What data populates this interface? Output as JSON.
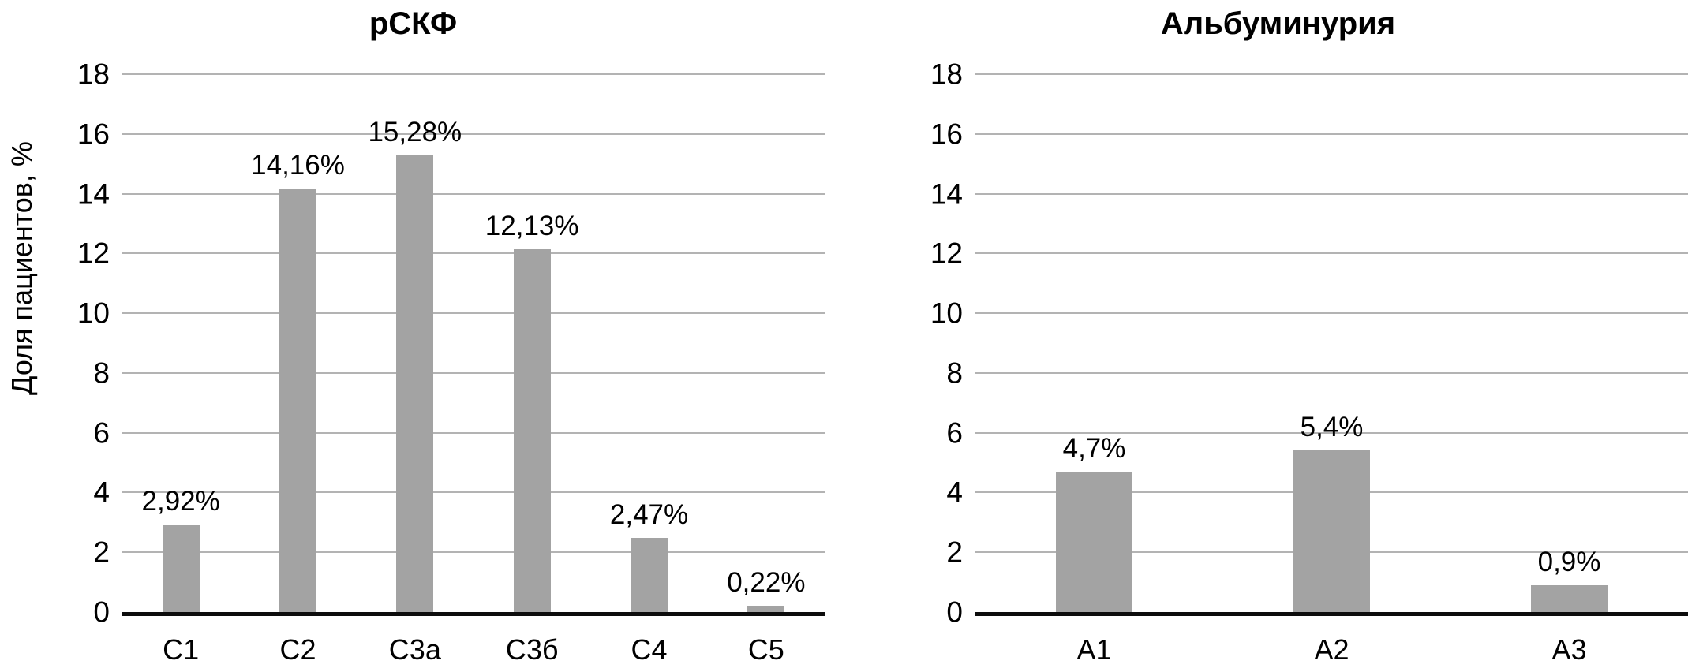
{
  "figure": {
    "background": "#ffffff",
    "bar_color": "#a3a3a3",
    "gridline_color": "#b3b3b3",
    "axis_color": "#0d0d0d",
    "text_color": "#000000"
  },
  "chart_data": [
    {
      "type": "bar",
      "title": "рСКФ",
      "ylabel": "Доля пациентов, %",
      "xlabel": "",
      "categories": [
        "С1",
        "С2",
        "С3а",
        "С3б",
        "С4",
        "С5"
      ],
      "values": [
        2.92,
        14.16,
        15.28,
        12.13,
        2.47,
        0.22
      ],
      "value_labels": [
        "2,92%",
        "14,16%",
        "15,28%",
        "12,13%",
        "2,47%",
        "0,22%"
      ],
      "ylim": [
        0,
        18
      ],
      "ytick_step": 2,
      "yticks": [
        0,
        2,
        4,
        6,
        8,
        10,
        12,
        14,
        16,
        18
      ],
      "grid": true,
      "legend": false
    },
    {
      "type": "bar",
      "title": "Альбуминурия",
      "ylabel": "",
      "xlabel": "",
      "categories": [
        "А1",
        "А2",
        "А3"
      ],
      "values": [
        4.7,
        5.4,
        0.9
      ],
      "value_labels": [
        "4,7%",
        "5,4%",
        "0,9%"
      ],
      "ylim": [
        0,
        18
      ],
      "ytick_step": 2,
      "yticks": [
        0,
        2,
        4,
        6,
        8,
        10,
        12,
        14,
        16,
        18
      ],
      "grid": true,
      "legend": false
    }
  ]
}
